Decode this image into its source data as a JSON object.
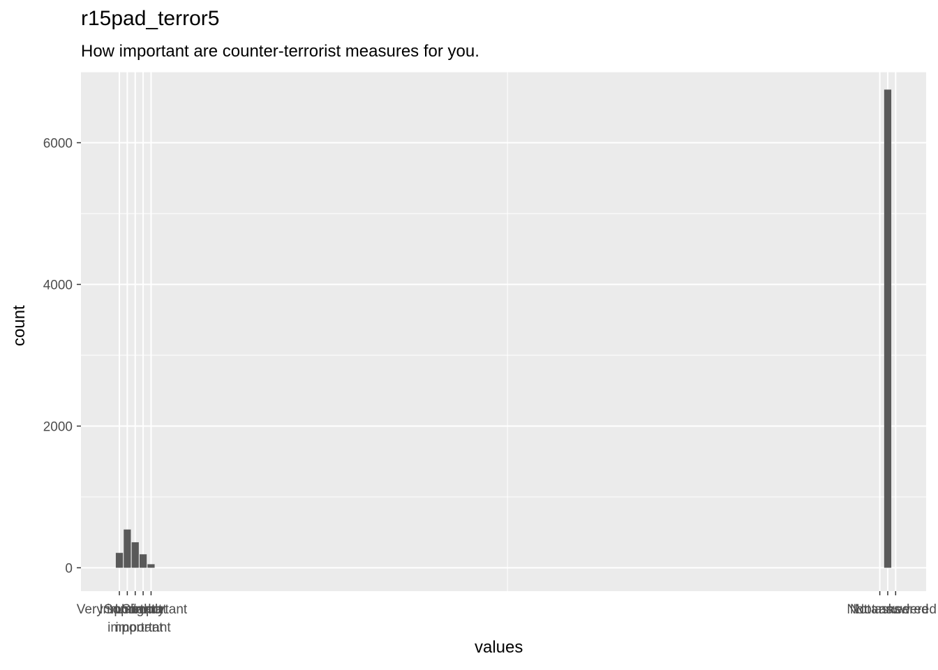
{
  "chart_data": {
    "type": "bar",
    "title": "r15pad_terror5",
    "subtitle": "How important are counter-terrorist measures for you.",
    "xlabel": "values",
    "ylabel": "count",
    "ylim": [
      -330,
      7000
    ],
    "yticks": [
      0,
      2000,
      4000,
      6000
    ],
    "ytick_labels": [
      "0",
      "2000",
      "4000",
      "6000"
    ],
    "grid": true,
    "categories": [
      {
        "x": 1,
        "label": "Very important",
        "value": 210
      },
      {
        "x": 2,
        "label": "Important",
        "value": 540
      },
      {
        "x": 3,
        "label": "Somewhat important",
        "value": 360
      },
      {
        "x": 4,
        "label": "Slightly important",
        "value": 190
      },
      {
        "x": 5,
        "label": "Unimportant",
        "value": 50
      },
      {
        "x": 97,
        "label": "Not asked",
        "value": 0
      },
      {
        "x": 98,
        "label": "Not answered",
        "value": 6750
      },
      {
        "x": 99,
        "label": "Not answered",
        "value": 0
      }
    ],
    "x_tick_text": [
      {
        "x": 1,
        "lines": [
          "Very important"
        ]
      },
      {
        "x": 2,
        "lines": [
          "Important"
        ]
      },
      {
        "x": 3,
        "lines": [
          "Somewhat",
          "important"
        ]
      },
      {
        "x": 4,
        "lines": [
          "Slightly",
          "important"
        ]
      },
      {
        "x": 5,
        "lines": [
          "Unimportant"
        ]
      },
      {
        "x": 97,
        "lines": [
          "Not asked"
        ]
      },
      {
        "x": 98,
        "lines": [
          "Not answered"
        ]
      },
      {
        "x": 99,
        "lines": [
          "Not answered"
        ]
      }
    ],
    "xlim": [
      -3.85,
      102.85
    ],
    "x_minor_grid": [
      50
    ],
    "colors": {
      "panel": "#ebebeb",
      "grid": "#ffffff",
      "bar": "#595959",
      "tick_text": "#4d4d4d"
    }
  }
}
